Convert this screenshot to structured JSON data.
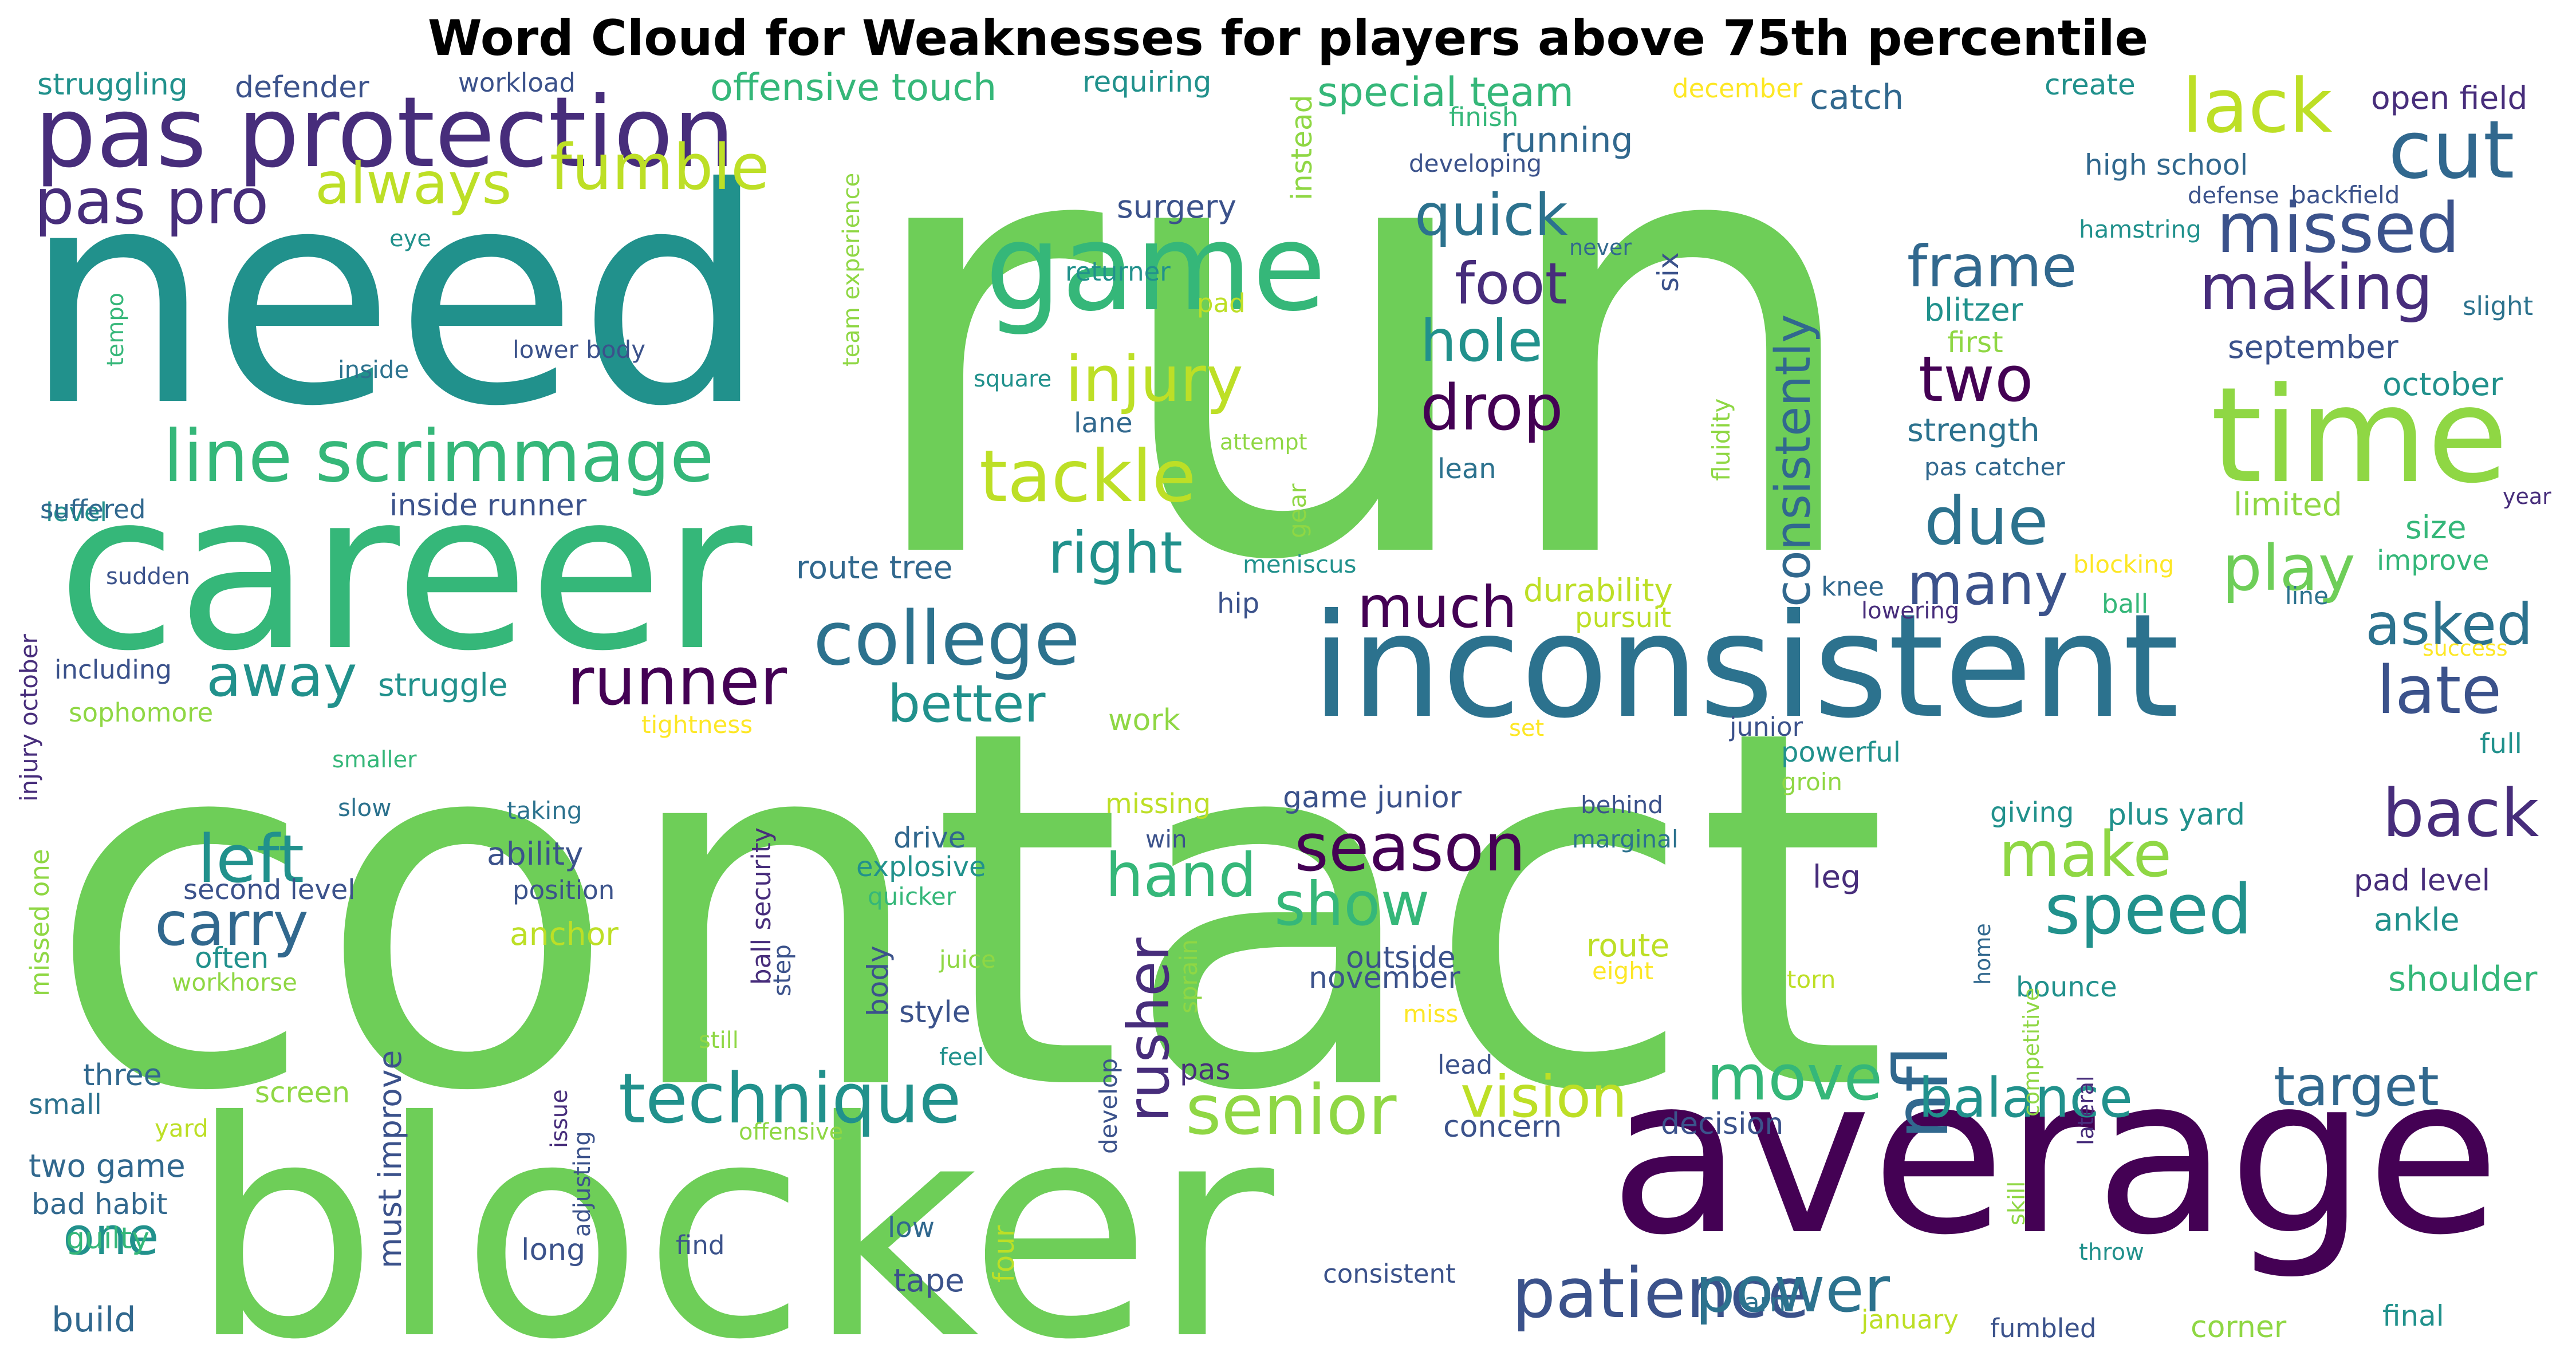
{
  "title": "Word Cloud for Weaknesses for players above 75th percentile",
  "words": [
    {
      "text": "run",
      "color": "#6ece58"
    },
    {
      "text": "contact",
      "color": "#6ece58"
    },
    {
      "text": "need",
      "color": "#21918c"
    },
    {
      "text": "blocker",
      "color": "#6ece58"
    },
    {
      "text": "career",
      "color": "#35b779"
    },
    {
      "text": "average",
      "color": "#440154"
    },
    {
      "text": "inconsistent",
      "color": "#2c728e"
    },
    {
      "text": "pas protection",
      "color": "#472d7b"
    },
    {
      "text": "time",
      "color": "#8fd744"
    },
    {
      "text": "game",
      "color": "#35b779"
    },
    {
      "text": "line scrimmage",
      "color": "#35b779"
    },
    {
      "text": "college",
      "color": "#2c728e"
    },
    {
      "text": "technique",
      "color": "#21918c"
    },
    {
      "text": "runner",
      "color": "#440154"
    },
    {
      "text": "tackle",
      "color": "#bddf26"
    },
    {
      "text": "season",
      "color": "#440154"
    },
    {
      "text": "speed",
      "color": "#21918c"
    },
    {
      "text": "senior",
      "color": "#8fd744"
    },
    {
      "text": "patience",
      "color": "#3b528b"
    },
    {
      "text": "missed",
      "color": "#3b528b"
    },
    {
      "text": "cut",
      "color": "#31688e"
    },
    {
      "text": "lack",
      "color": "#bddf26"
    },
    {
      "text": "nfl",
      "color": "#31688e"
    },
    {
      "text": "fumble",
      "color": "#bddf26"
    },
    {
      "text": "pas pro",
      "color": "#472d7b"
    },
    {
      "text": "injury",
      "color": "#bddf26"
    },
    {
      "text": "drop",
      "color": "#440154"
    },
    {
      "text": "left",
      "color": "#21918c"
    },
    {
      "text": "carry",
      "color": "#31688e"
    },
    {
      "text": "away",
      "color": "#21918c"
    },
    {
      "text": "right",
      "color": "#21918c"
    },
    {
      "text": "hand",
      "color": "#35b779"
    },
    {
      "text": "show",
      "color": "#35b779"
    },
    {
      "text": "make",
      "color": "#8fd744"
    },
    {
      "text": "back",
      "color": "#472d7b"
    },
    {
      "text": "late",
      "color": "#3b528b"
    },
    {
      "text": "play",
      "color": "#6ece58"
    },
    {
      "text": "asked",
      "color": "#2c728e"
    },
    {
      "text": "due",
      "color": "#2c728e"
    },
    {
      "text": "many",
      "color": "#3b528b"
    },
    {
      "text": "two",
      "color": "#440154"
    },
    {
      "text": "frame",
      "color": "#31688e"
    },
    {
      "text": "making",
      "color": "#472d7b"
    },
    {
      "text": "consistently",
      "color": "#31688e"
    },
    {
      "text": "hole",
      "color": "#21918c"
    },
    {
      "text": "foot",
      "color": "#472d7b"
    },
    {
      "text": "quick",
      "color": "#2c728e"
    },
    {
      "text": "always",
      "color": "#bddf26"
    },
    {
      "text": "one",
      "color": "#21918c"
    },
    {
      "text": "move",
      "color": "#35b779"
    },
    {
      "text": "power",
      "color": "#2c728e"
    },
    {
      "text": "balance",
      "color": "#21918c"
    },
    {
      "text": "target",
      "color": "#31688e"
    },
    {
      "text": "vision",
      "color": "#bddf26"
    },
    {
      "text": "much",
      "color": "#440154"
    },
    {
      "text": "better",
      "color": "#21918c"
    },
    {
      "text": "rusher",
      "color": "#472d7b"
    },
    {
      "text": "special team",
      "color": "#35b779"
    },
    {
      "text": "offensive touch",
      "color": "#35b779"
    },
    {
      "text": "struggling",
      "color": "#21918c"
    },
    {
      "text": "defender",
      "color": "#3b528b"
    },
    {
      "text": "workload",
      "color": "#3b528b"
    },
    {
      "text": "requiring",
      "color": "#21918c"
    },
    {
      "text": "december",
      "color": "#fde725"
    },
    {
      "text": "create",
      "color": "#21918c"
    },
    {
      "text": "open field",
      "color": "#472d7b"
    },
    {
      "text": "catch",
      "color": "#31688e"
    },
    {
      "text": "running",
      "color": "#31688e"
    },
    {
      "text": "finish",
      "color": "#35b779"
    },
    {
      "text": "developing",
      "color": "#3b528b"
    },
    {
      "text": "high school",
      "color": "#31688e"
    },
    {
      "text": "defense",
      "color": "#3b528b"
    },
    {
      "text": "backfield",
      "color": "#3b528b"
    },
    {
      "text": "surgery",
      "color": "#3b528b"
    },
    {
      "text": "instead",
      "color": "#8fd744"
    },
    {
      "text": "team experience",
      "color": "#8fd744"
    },
    {
      "text": "hamstring",
      "color": "#21918c"
    },
    {
      "text": "never",
      "color": "#31688e"
    },
    {
      "text": "slight",
      "color": "#2c728e"
    },
    {
      "text": "six",
      "color": "#3b528b"
    },
    {
      "text": "blitzer",
      "color": "#21918c"
    },
    {
      "text": "first",
      "color": "#8fd744"
    },
    {
      "text": "september",
      "color": "#3b528b"
    },
    {
      "text": "october",
      "color": "#21918c"
    },
    {
      "text": "strength",
      "color": "#2c728e"
    },
    {
      "text": "pas catcher",
      "color": "#31688e"
    },
    {
      "text": "limited",
      "color": "#8fd744"
    },
    {
      "text": "size",
      "color": "#35b779"
    },
    {
      "text": "year",
      "color": "#472d7b"
    },
    {
      "text": "improve",
      "color": "#35b779"
    },
    {
      "text": "blocking",
      "color": "#fde725"
    },
    {
      "text": "ball",
      "color": "#35b779"
    },
    {
      "text": "line",
      "color": "#2c728e"
    },
    {
      "text": "success",
      "color": "#fde725"
    },
    {
      "text": "knee",
      "color": "#31688e"
    },
    {
      "text": "lowering",
      "color": "#472d7b"
    },
    {
      "text": "full",
      "color": "#21918c"
    },
    {
      "text": "eye",
      "color": "#21918c"
    },
    {
      "text": "tempo",
      "color": "#35b779"
    },
    {
      "text": "inside",
      "color": "#2c728e"
    },
    {
      "text": "lower body",
      "color": "#3b528b"
    },
    {
      "text": "returner",
      "color": "#21918c"
    },
    {
      "text": "pad",
      "color": "#bddf26"
    },
    {
      "text": "square",
      "color": "#21918c"
    },
    {
      "text": "lane",
      "color": "#31688e"
    },
    {
      "text": "attempt",
      "color": "#8fd744"
    },
    {
      "text": "lean",
      "color": "#2c728e"
    },
    {
      "text": "fluidity",
      "color": "#8fd744"
    },
    {
      "text": "gear",
      "color": "#8fd744"
    },
    {
      "text": "meniscus",
      "color": "#21918c"
    },
    {
      "text": "hip",
      "color": "#3b528b"
    },
    {
      "text": "durability",
      "color": "#bddf26"
    },
    {
      "text": "pursuit",
      "color": "#bddf26"
    },
    {
      "text": "level",
      "color": "#21918c"
    },
    {
      "text": "suffered",
      "color": "#31688e"
    },
    {
      "text": "inside runner",
      "color": "#3b528b"
    },
    {
      "text": "route tree",
      "color": "#31688e"
    },
    {
      "text": "sudden",
      "color": "#3b528b"
    },
    {
      "text": "injury october",
      "color": "#472d7b"
    },
    {
      "text": "including",
      "color": "#3b528b"
    },
    {
      "text": "struggle",
      "color": "#21918c"
    },
    {
      "text": "sophomore",
      "color": "#8fd744"
    },
    {
      "text": "tightness",
      "color": "#fde725"
    },
    {
      "text": "work",
      "color": "#8fd744"
    },
    {
      "text": "set",
      "color": "#fde725"
    },
    {
      "text": "junior",
      "color": "#3b528b"
    },
    {
      "text": "powerful",
      "color": "#21918c"
    },
    {
      "text": "groin",
      "color": "#8fd744"
    },
    {
      "text": "smaller",
      "color": "#35b779"
    },
    {
      "text": "slow",
      "color": "#2c728e"
    },
    {
      "text": "taking",
      "color": "#2c728e"
    },
    {
      "text": "ball security",
      "color": "#472d7b"
    },
    {
      "text": "missing",
      "color": "#bddf26"
    },
    {
      "text": "game junior",
      "color": "#3b528b"
    },
    {
      "text": "behind",
      "color": "#3b528b"
    },
    {
      "text": "giving",
      "color": "#21918c"
    },
    {
      "text": "plus yard",
      "color": "#21918c"
    },
    {
      "text": "marginal",
      "color": "#2c728e"
    },
    {
      "text": "ability",
      "color": "#3b528b"
    },
    {
      "text": "position",
      "color": "#3b528b"
    },
    {
      "text": "drive",
      "color": "#31688e"
    },
    {
      "text": "explosive",
      "color": "#21918c"
    },
    {
      "text": "win",
      "color": "#3b528b"
    },
    {
      "text": "quicker",
      "color": "#35b779"
    },
    {
      "text": "leg",
      "color": "#472d7b"
    },
    {
      "text": "pad level",
      "color": "#472d7b"
    },
    {
      "text": "ankle",
      "color": "#21918c"
    },
    {
      "text": "missed one",
      "color": "#8fd744"
    },
    {
      "text": "second level",
      "color": "#3b528b"
    },
    {
      "text": "anchor",
      "color": "#bddf26"
    },
    {
      "text": "often",
      "color": "#21918c"
    },
    {
      "text": "workhorse",
      "color": "#8fd744"
    },
    {
      "text": "outside",
      "color": "#3b528b"
    },
    {
      "text": "november",
      "color": "#3b528b"
    },
    {
      "text": "route",
      "color": "#bddf26"
    },
    {
      "text": "eight",
      "color": "#fde725"
    },
    {
      "text": "home",
      "color": "#31688e"
    },
    {
      "text": "juice",
      "color": "#8fd744"
    },
    {
      "text": "sprain",
      "color": "#8fd744"
    },
    {
      "text": "torn",
      "color": "#bddf26"
    },
    {
      "text": "bounce",
      "color": "#21918c"
    },
    {
      "text": "shoulder",
      "color": "#35b779"
    },
    {
      "text": "body",
      "color": "#3b528b"
    },
    {
      "text": "step",
      "color": "#3b528b"
    },
    {
      "text": "style",
      "color": "#3b528b"
    },
    {
      "text": "must improve",
      "color": "#3b528b"
    },
    {
      "text": "miss",
      "color": "#fde725"
    },
    {
      "text": "competitive",
      "color": "#8fd744"
    },
    {
      "text": "lateral",
      "color": "#472d7b"
    },
    {
      "text": "still",
      "color": "#8fd744"
    },
    {
      "text": "feel",
      "color": "#21918c"
    },
    {
      "text": "three",
      "color": "#31688e"
    },
    {
      "text": "small",
      "color": "#2c728e"
    },
    {
      "text": "screen",
      "color": "#8fd744"
    },
    {
      "text": "yard",
      "color": "#bddf26"
    },
    {
      "text": "issue",
      "color": "#472d7b"
    },
    {
      "text": "offensive",
      "color": "#8fd744"
    },
    {
      "text": "develop",
      "color": "#3b528b"
    },
    {
      "text": "pas",
      "color": "#472d7b"
    },
    {
      "text": "lead",
      "color": "#3b528b"
    },
    {
      "text": "concern",
      "color": "#3b528b"
    },
    {
      "text": "decision",
      "color": "#3b528b"
    },
    {
      "text": "skill",
      "color": "#8fd744"
    },
    {
      "text": "two game",
      "color": "#31688e"
    },
    {
      "text": "adjusting",
      "color": "#3b528b"
    },
    {
      "text": "bad habit",
      "color": "#31688e"
    },
    {
      "text": "guilty",
      "color": "#35b779"
    },
    {
      "text": "long",
      "color": "#3b528b"
    },
    {
      "text": "find",
      "color": "#3b528b"
    },
    {
      "text": "low",
      "color": "#31688e"
    },
    {
      "text": "four",
      "color": "#bddf26"
    },
    {
      "text": "throw",
      "color": "#21918c"
    },
    {
      "text": "consistent",
      "color": "#3b528b"
    },
    {
      "text": "build",
      "color": "#31688e"
    },
    {
      "text": "tape",
      "color": "#3b528b"
    },
    {
      "text": "january",
      "color": "#bddf26"
    },
    {
      "text": "arm",
      "color": "#2c728e"
    },
    {
      "text": "fumbled",
      "color": "#3b528b"
    },
    {
      "text": "corner",
      "color": "#8fd744"
    },
    {
      "text": "final",
      "color": "#21918c"
    }
  ]
}
